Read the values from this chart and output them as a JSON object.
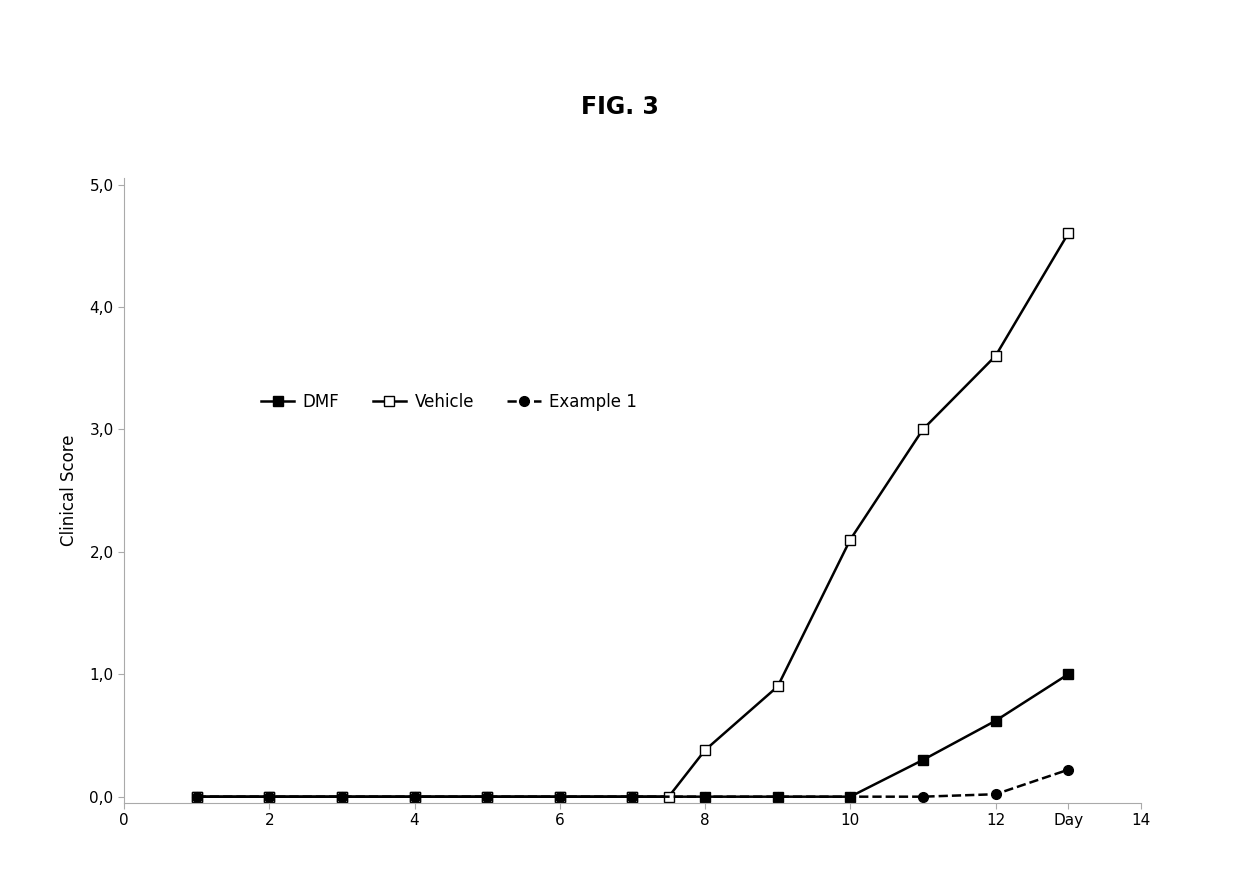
{
  "title": "FIG. 3",
  "ylabel": "Clinical Score",
  "xlim": [
    0,
    14
  ],
  "ylim": [
    -0.05,
    5.05
  ],
  "yticks": [
    0.0,
    1.0,
    2.0,
    3.0,
    4.0,
    5.0
  ],
  "ytick_labels": [
    "0,0",
    "1,0",
    "2,0",
    "3,0",
    "4,0",
    "5,0"
  ],
  "xtick_positions": [
    0,
    2,
    4,
    6,
    8,
    10,
    12,
    13,
    14
  ],
  "xtick_labels": [
    "0",
    "2",
    "4",
    "6",
    "8",
    "10",
    "12",
    "Day",
    "14"
  ],
  "dmf": {
    "x": [
      1,
      2,
      3,
      4,
      5,
      6,
      7,
      8,
      9,
      10,
      11,
      12,
      13
    ],
    "y": [
      0,
      0,
      0,
      0,
      0,
      0,
      0,
      0,
      0,
      0,
      0.3,
      0.62,
      1.0
    ],
    "label": "DMF",
    "color": "#000000",
    "linestyle": "solid",
    "marker": "s",
    "markerfacecolor": "#000000",
    "markeredgecolor": "#000000",
    "markersize": 7,
    "linewidth": 1.8
  },
  "vehicle": {
    "x": [
      1,
      2,
      3,
      4,
      5,
      6,
      7,
      7.5,
      8,
      9,
      10,
      11,
      12,
      13
    ],
    "y": [
      0,
      0,
      0,
      0,
      0,
      0,
      0,
      0.0,
      0.38,
      0.9,
      2.1,
      3.0,
      3.6,
      4.6
    ],
    "label": "Vehicle",
    "color": "#000000",
    "linestyle": "solid",
    "marker": "s",
    "markerfacecolor": "#ffffff",
    "markeredgecolor": "#000000",
    "markersize": 7,
    "linewidth": 1.8
  },
  "example1": {
    "x": [
      1,
      2,
      3,
      4,
      5,
      6,
      7,
      8,
      9,
      10,
      11,
      12,
      13
    ],
    "y": [
      0,
      0,
      0,
      0,
      0,
      0,
      0,
      0,
      0,
      0,
      0,
      0.02,
      0.22
    ],
    "label": "Example 1",
    "color": "#000000",
    "linestyle": "dashed",
    "marker": "o",
    "markerfacecolor": "#000000",
    "markeredgecolor": "#000000",
    "markersize": 7,
    "linewidth": 1.8
  },
  "background_color": "#ffffff",
  "title_fontsize": 17,
  "axis_label_fontsize": 12,
  "tick_fontsize": 11,
  "legend_fontsize": 12
}
